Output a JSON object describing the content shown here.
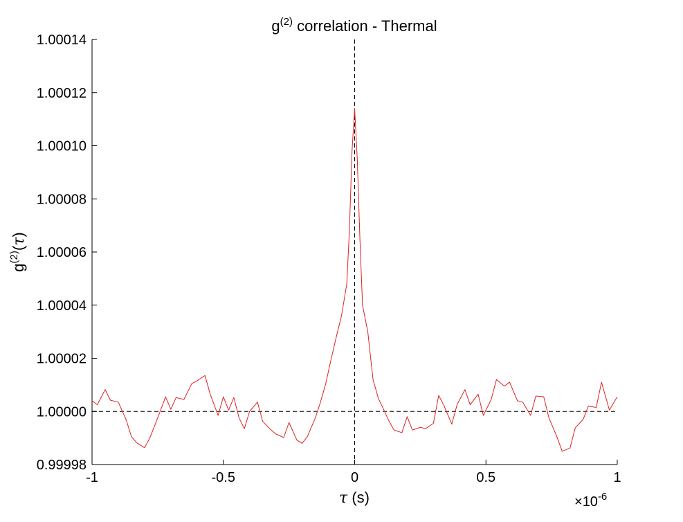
{
  "chart_data": {
    "type": "line",
    "title": {
      "base": "g",
      "sup": "(2)",
      "rest": " correlation - Thermal"
    },
    "ylabel": {
      "base": "g",
      "sup": "(2)",
      "open": "(",
      "symbol": "τ",
      "close": ")"
    },
    "xlabel": {
      "symbol": "τ",
      "rest": " (s)"
    },
    "x_multiplier": {
      "symbol": "×",
      "base": "10",
      "sup": "-6"
    },
    "xlim": [
      -1,
      1
    ],
    "ylim": [
      0.99998,
      1.00014
    ],
    "xticks": [
      {
        "value": -1,
        "label": "-1"
      },
      {
        "value": -0.5,
        "label": "-0.5"
      },
      {
        "value": 0,
        "label": "0"
      },
      {
        "value": 0.5,
        "label": "0.5"
      },
      {
        "value": 1,
        "label": "1"
      }
    ],
    "yticks": [
      {
        "value": 0.99998,
        "label": "0.99998"
      },
      {
        "value": 1.0,
        "label": "1.00000"
      },
      {
        "value": 1.00002,
        "label": "1.00002"
      },
      {
        "value": 1.00004,
        "label": "1.00004"
      },
      {
        "value": 1.00006,
        "label": "1.00006"
      },
      {
        "value": 1.00008,
        "label": "1.00008"
      },
      {
        "value": 1.0001,
        "label": "1.00010"
      },
      {
        "value": 1.00012,
        "label": "1.00012"
      },
      {
        "value": 1.00014,
        "label": "1.00014"
      }
    ],
    "grid": false,
    "reference_lines": {
      "horizontal_y": 1.0,
      "vertical_x": 0
    },
    "series": [
      {
        "color": "#e02020",
        "x": [
          -1.0,
          -0.98,
          -0.95,
          -0.93,
          -0.9,
          -0.87,
          -0.85,
          -0.83,
          -0.8,
          -0.78,
          -0.75,
          -0.72,
          -0.7,
          -0.68,
          -0.65,
          -0.62,
          -0.6,
          -0.57,
          -0.55,
          -0.52,
          -0.5,
          -0.48,
          -0.46,
          -0.44,
          -0.42,
          -0.4,
          -0.37,
          -0.35,
          -0.32,
          -0.3,
          -0.27,
          -0.25,
          -0.22,
          -0.2,
          -0.18,
          -0.15,
          -0.13,
          -0.11,
          -0.09,
          -0.07,
          -0.05,
          -0.03,
          -0.02,
          -0.01,
          0.0,
          0.01,
          0.02,
          0.03,
          0.05,
          0.07,
          0.09,
          0.11,
          0.13,
          0.15,
          0.18,
          0.2,
          0.22,
          0.25,
          0.27,
          0.3,
          0.32,
          0.34,
          0.37,
          0.39,
          0.42,
          0.44,
          0.47,
          0.49,
          0.52,
          0.54,
          0.57,
          0.59,
          0.62,
          0.64,
          0.67,
          0.69,
          0.72,
          0.74,
          0.77,
          0.79,
          0.82,
          0.84,
          0.87,
          0.89,
          0.92,
          0.94,
          0.97,
          1.0
        ],
        "y": [
          1.000004,
          1.0000025,
          1.0000082,
          1.0000042,
          1.0000035,
          0.9999968,
          0.9999905,
          0.9999882,
          0.9999863,
          0.99999,
          0.9999975,
          1.0000055,
          1.0000008,
          1.0000052,
          1.0000045,
          1.0000105,
          1.0000115,
          1.0000135,
          1.0000065,
          0.9999985,
          1.0000055,
          1.0000005,
          1.0000052,
          0.9999975,
          0.9999935,
          1.0,
          1.0000035,
          0.9999962,
          0.9999932,
          0.9999915,
          0.9999902,
          0.9999958,
          0.9999892,
          0.999988,
          0.9999905,
          0.9999975,
          1.0000035,
          1.0000105,
          1.0000195,
          1.000028,
          1.000036,
          1.000048,
          1.000068,
          1.000098,
          1.000114,
          1.000095,
          1.000065,
          1.00004,
          1.00003,
          1.000012,
          1.000005,
          1.0000008,
          0.9999965,
          0.999993,
          0.999992,
          0.999998,
          0.999993,
          0.999994,
          0.9999935,
          0.9999955,
          1.000006,
          1.0000022,
          0.9999952,
          1.0000025,
          1.0000082,
          1.0000025,
          1.0000065,
          0.9999985,
          1.0000045,
          1.000012,
          1.0000095,
          1.000011,
          1.000004,
          1.0000035,
          0.9999985,
          1.0000058,
          1.0000055,
          0.9999975,
          0.9999905,
          0.999985,
          0.9999862,
          0.9999938,
          0.999997,
          1.000002,
          1.0000015,
          1.000011,
          1.0000005,
          1.0000055
        ]
      }
    ]
  }
}
